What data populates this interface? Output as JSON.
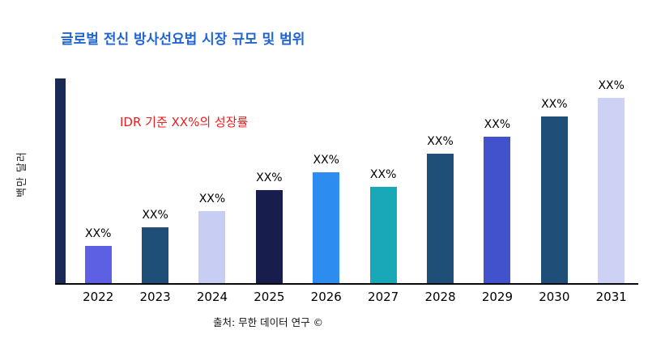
{
  "page": {
    "title": "글로벌 전신 방사선요법 시장 규모 및 범위",
    "annotation": "IDR 기준 XX%의 성장률",
    "source": "출처: 무한 데이터 연구 ©"
  },
  "colors": {
    "title": "#2065D1",
    "annotation": "#F21B1B",
    "axis_bar": "#1B2A55",
    "axis_line": "#0A0A0A",
    "background": "#FFFFFF"
  },
  "chart_data": {
    "type": "bar",
    "title": "글로벌 전신 방사선요법 시장 규모 및 범위",
    "xlabel": "",
    "ylabel": "백만 달러",
    "categories": [
      "2022",
      "2023",
      "2024",
      "2025",
      "2026",
      "2027",
      "2028",
      "2029",
      "2030",
      "2031"
    ],
    "values": [
      20,
      30,
      39,
      50,
      60,
      52,
      70,
      79,
      90,
      100
    ],
    "value_labels": [
      "XX%",
      "XX%",
      "XX%",
      "XX%",
      "XX%",
      "XX%",
      "XX%",
      "XX%",
      "XX%",
      "XX%"
    ],
    "bar_colors": [
      "#5D60E2",
      "#1F4E79",
      "#C8CDF4",
      "#171E4E",
      "#2D8CF0",
      "#18A8B8",
      "#1F4E79",
      "#4152CC",
      "#1F4E79",
      "#CDD2F5"
    ],
    "ylim": [
      0,
      110
    ],
    "grid": false,
    "legend": false,
    "annotation": "IDR 기준 XX%의 성장률",
    "source": "출처: 무한 데이터 연구 ©"
  }
}
